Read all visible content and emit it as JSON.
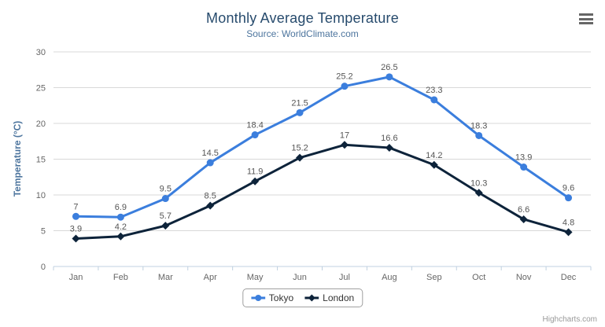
{
  "chart": {
    "title": "Monthly Average Temperature",
    "subtitle": "Source: WorldClimate.com",
    "y_axis_title": "Temperature (°C)",
    "credits": "Highcharts.com",
    "menu_icon": "hamburger-icon"
  },
  "chart_data": {
    "type": "line",
    "title": "Monthly Average Temperature",
    "subtitle": "Source: WorldClimate.com",
    "xlabel": "",
    "ylabel": "Temperature (°C)",
    "categories": [
      "Jan",
      "Feb",
      "Mar",
      "Apr",
      "May",
      "Jun",
      "Jul",
      "Aug",
      "Sep",
      "Oct",
      "Nov",
      "Dec"
    ],
    "series": [
      {
        "name": "Tokyo",
        "marker": "circle",
        "color": "#3b7edd",
        "values": [
          7,
          6.9,
          9.5,
          14.5,
          18.4,
          21.5,
          25.2,
          26.5,
          23.3,
          18.3,
          13.9,
          9.6
        ]
      },
      {
        "name": "London",
        "marker": "diamond",
        "color": "#0d233a",
        "values": [
          3.9,
          4.2,
          5.7,
          8.5,
          11.9,
          15.2,
          17,
          16.6,
          14.2,
          10.3,
          6.6,
          4.8
        ]
      }
    ],
    "ylim": [
      0,
      30
    ],
    "yticks": [
      0,
      5,
      10,
      15,
      20,
      25,
      30
    ],
    "grid": true,
    "data_labels": true,
    "legend_position": "bottom"
  },
  "colors": {
    "title": "#274b6d",
    "subtitle": "#4d759e",
    "axis_title": "#4d759e",
    "tick_label": "#666666",
    "gridline": "#d8d8d8",
    "axis_line": "#c0d0e0",
    "data_label": "#555555",
    "legend_text": "#333333",
    "credits": "#999999",
    "menu_icon": "#666666"
  }
}
